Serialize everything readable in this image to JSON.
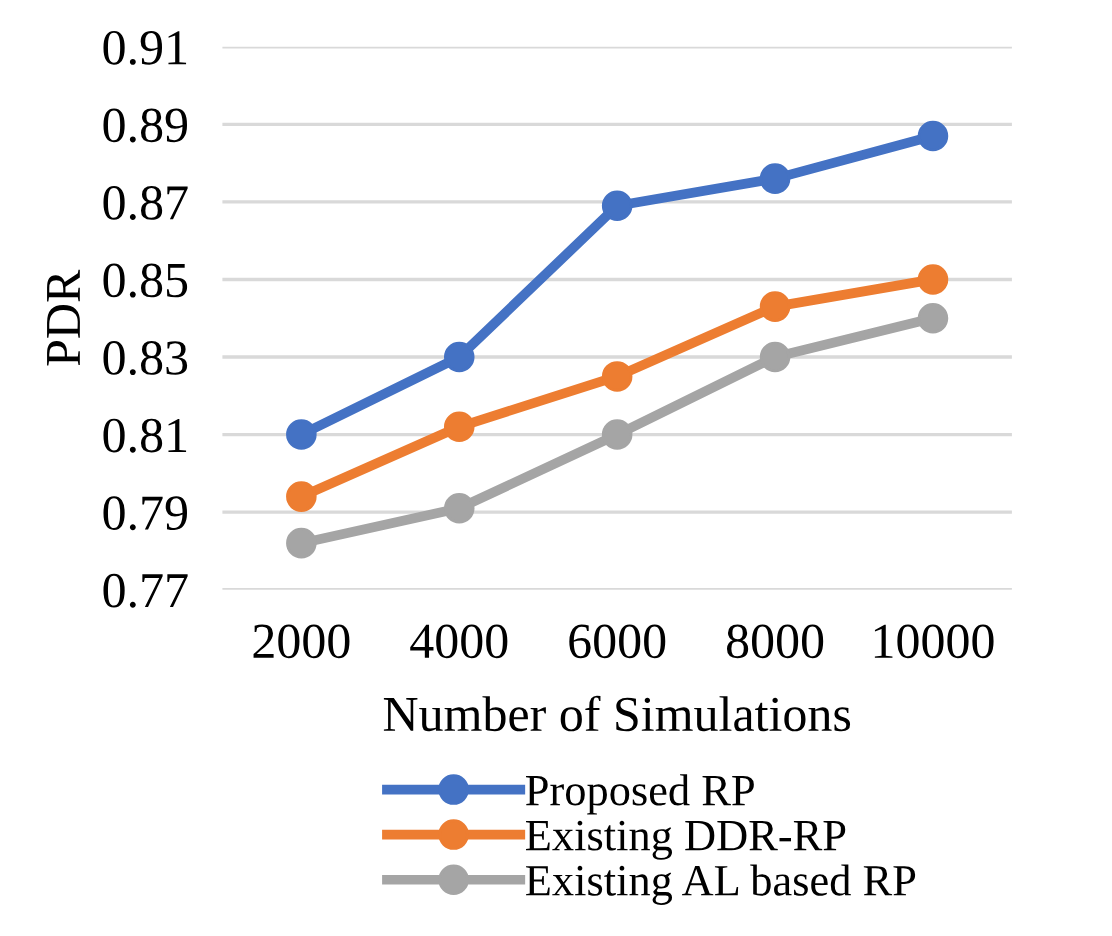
{
  "chart_data": {
    "type": "line",
    "xlabel": "Number of Simulations",
    "ylabel": "PDR",
    "categories": [
      "2000",
      "4000",
      "6000",
      "8000",
      "10000"
    ],
    "series": [
      {
        "name": "Proposed RP",
        "color": "#4472c4",
        "values": [
          0.81,
          0.83,
          0.869,
          0.876,
          0.887
        ]
      },
      {
        "name": "Existing DDR-RP",
        "color": "#ed7d31",
        "values": [
          0.794,
          0.812,
          0.825,
          0.843,
          0.85
        ]
      },
      {
        "name": "Existing AL based RP",
        "color": "#a5a5a5",
        "values": [
          0.782,
          0.791,
          0.81,
          0.83,
          0.84
        ]
      }
    ],
    "ylim": [
      0.77,
      0.91
    ],
    "yticks": [
      {
        "value": 0.77,
        "label": "0.77"
      },
      {
        "value": 0.79,
        "label": "0.79"
      },
      {
        "value": 0.81,
        "label": "0.81"
      },
      {
        "value": 0.83,
        "label": "0.83"
      },
      {
        "value": 0.85,
        "label": "0.85"
      },
      {
        "value": 0.87,
        "label": "0.87"
      },
      {
        "value": 0.89,
        "label": "0.89"
      },
      {
        "value": 0.91,
        "label": "0.91"
      }
    ],
    "grid": "y",
    "legend": "bottom",
    "marker": "circle",
    "line_style": "solid"
  }
}
